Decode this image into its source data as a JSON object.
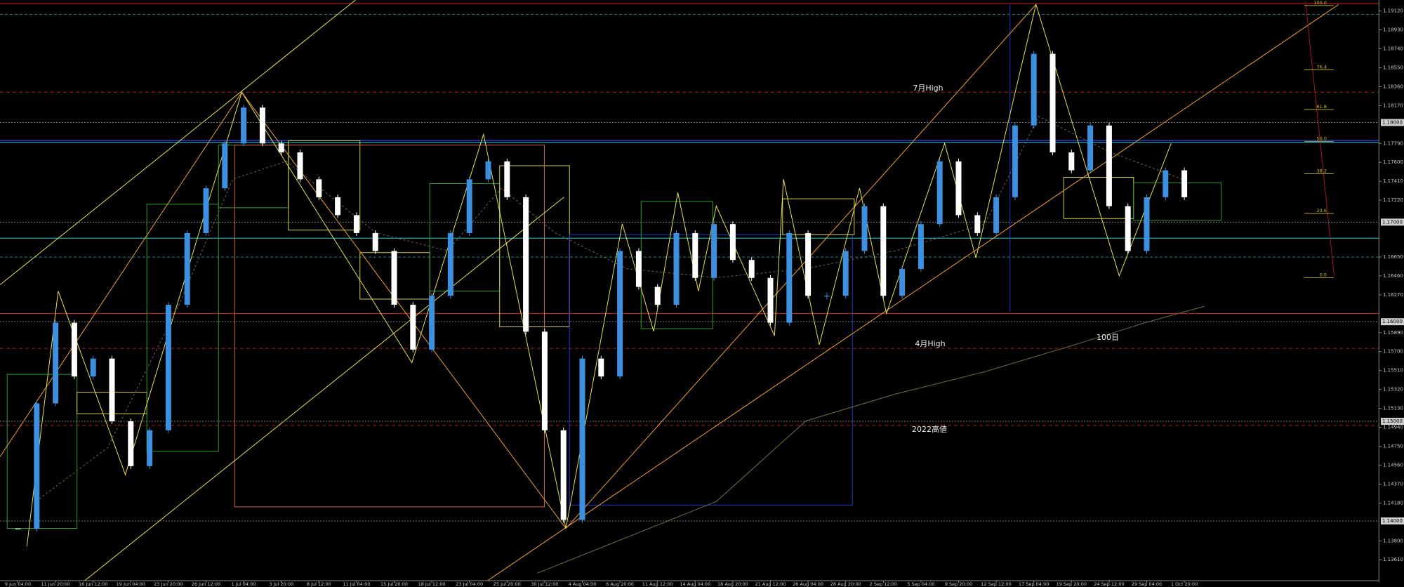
{
  "chart_data": {
    "type": "candlestick",
    "up_color": "#3d8fe0",
    "down_color": "#ffffff",
    "categories": [
      "9 Jun 04:00",
      null,
      "11 Jun 20:00",
      null,
      "16 Jun 12:00",
      null,
      "19 Jun 04:00",
      null,
      "23 Jun 20:00",
      null,
      "26 Jun 12:00",
      null,
      "1 Jul 04:00",
      null,
      "3 Jul 20:00",
      null,
      "8 Jul 12:00",
      null,
      "11 Jul 04:00",
      null,
      "15 Jul 20:00",
      null,
      "18 Jul 12:00",
      null,
      "23 Jul 04:00",
      null,
      "25 Jul 20:00",
      null,
      "30 Jul 12:00",
      null,
      "4 Aug 04:00",
      null,
      "6 Aug 20:00",
      null,
      "11 Aug 12:00",
      null,
      "14 Aug 04:00",
      null,
      "18 Aug 20:00",
      null,
      "21 Aug 12:00",
      null,
      "26 Aug 04:00",
      null,
      "28 Aug 20:00",
      null,
      "2 Sep 12:00",
      null,
      "5 Sep 04:00",
      null,
      "9 Sep 20:00",
      null,
      "12 Sep 12:00",
      null,
      "17 Sep 04:00",
      null,
      "19 Sep 20:00",
      null,
      "24 Sep 12:00",
      null,
      "29 Sep 04:00",
      null,
      "1 Oct 20:00"
    ],
    "values": [
      1.1392,
      1.1518,
      1.1599,
      1.1545,
      1.1563,
      1.15,
      1.1455,
      1.1491,
      1.1617,
      1.1689,
      1.1734,
      1.1779,
      1.1815,
      1.1779,
      1.177,
      1.1743,
      1.1725,
      1.1707,
      1.1689,
      1.1671,
      1.1617,
      1.1572,
      1.1626,
      1.1689,
      1.1743,
      1.1761,
      1.1725,
      1.159,
      1.1491,
      1.1401,
      1.1563,
      1.1545,
      1.1671,
      1.1635,
      1.1617,
      1.1689,
      1.1644,
      1.1698,
      1.1662,
      1.1644,
      1.1599,
      1.1689,
      1.1626,
      1.1626,
      1.1671,
      1.1716,
      1.1626,
      1.1653,
      1.1698,
      1.1761,
      1.1707,
      1.1689,
      1.1725,
      1.1797,
      1.1869,
      1.177,
      1.1752,
      1.1797,
      1.1716,
      1.1671,
      1.1725,
      1.1752,
      1.1725
    ],
    "ylim": [
      1.134,
      1.1923
    ],
    "yticks": [
      {
        "value": 1.1912,
        "label": "1.19120"
      },
      {
        "value": 1.1893,
        "label": "1.18930"
      },
      {
        "value": 1.1874,
        "label": "1.18740"
      },
      {
        "value": 1.1855,
        "label": "1.18550"
      },
      {
        "value": 1.1836,
        "label": "1.18360"
      },
      {
        "value": 1.1817,
        "label": "1.18170"
      },
      {
        "value": 1.1779,
        "label": "1.17790"
      },
      {
        "value": 1.176,
        "label": "1.17600"
      },
      {
        "value": 1.1741,
        "label": "1.17410"
      },
      {
        "value": 1.1722,
        "label": "1.17220"
      },
      {
        "value": 1.1665,
        "label": "1.16650"
      },
      {
        "value": 1.1646,
        "label": "1.16460"
      },
      {
        "value": 1.1627,
        "label": "1.16270"
      },
      {
        "value": 1.1589,
        "label": "1.15890"
      },
      {
        "value": 1.157,
        "label": "1.15700"
      },
      {
        "value": 1.1551,
        "label": "1.15510"
      },
      {
        "value": 1.1532,
        "label": "1.15320"
      },
      {
        "value": 1.1513,
        "label": "1.15130"
      },
      {
        "value": 1.1494,
        "label": "1.14940"
      },
      {
        "value": 1.1475,
        "label": "1.14750"
      },
      {
        "value": 1.1456,
        "label": "1.14560"
      },
      {
        "value": 1.1437,
        "label": "1.14370"
      },
      {
        "value": 1.1418,
        "label": "1.14180"
      },
      {
        "value": 1.138,
        "label": "1.13800"
      },
      {
        "value": 1.1361,
        "label": "1.13610"
      }
    ],
    "levels": [
      {
        "value": 1.18,
        "label": "1.18000"
      },
      {
        "value": 1.17,
        "label": "1.17000"
      },
      {
        "value": 1.16,
        "label": "1.16000"
      },
      {
        "value": 1.15,
        "label": "1.15000"
      },
      {
        "value": 1.14,
        "label": "1.14000"
      }
    ],
    "fib_levels": [
      {
        "value": 100,
        "label": "100.0"
      },
      76.4,
      61.8,
      {
        "value": 50,
        "label": "50.0"
      },
      38.2,
      23.6,
      {
        "value": 0,
        "label": "0.0"
      }
    ],
    "annotations": [
      "7月High",
      "4月High",
      "100日",
      "2022高値"
    ]
  }
}
